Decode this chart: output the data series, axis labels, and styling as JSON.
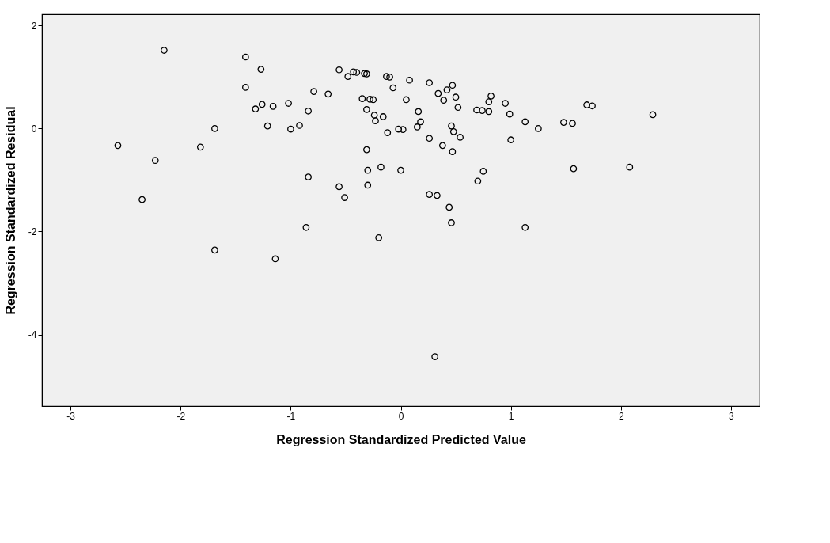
{
  "chart_data": {
    "type": "scatter",
    "xlabel": "Regression Standardized Predicted Value",
    "ylabel": "Regression Standardized Residual",
    "x": [
      -2.15,
      -1.41,
      -1.27,
      -1.41,
      -1.32,
      -1.26,
      -1.16,
      -1.21,
      -1.69,
      -2.57,
      -1.82,
      -2.23,
      -2.35,
      -1.69,
      -1.14,
      -0.56,
      -0.48,
      -0.43,
      -0.4,
      -0.33,
      -0.31,
      -0.13,
      -0.1,
      -0.07,
      0.08,
      0.26,
      -0.79,
      -0.66,
      -1.02,
      -0.84,
      -1.0,
      -0.92,
      -0.35,
      -0.28,
      -0.25,
      -0.31,
      -0.24,
      -0.23,
      -0.16,
      0.05,
      0.16,
      0.18,
      0.15,
      -0.12,
      -0.02,
      0.02,
      0.26,
      0.38,
      0.47,
      0.46,
      0.48,
      0.54,
      0.34,
      0.39,
      0.42,
      0.47,
      0.5,
      0.52,
      -0.31,
      -0.84,
      -0.3,
      -0.18,
      0.0,
      -0.56,
      -0.3,
      -0.51,
      0.26,
      0.33,
      0.44,
      0.46,
      -0.86,
      -0.2,
      0.75,
      0.7,
      0.82,
      0.8,
      0.69,
      0.74,
      0.8,
      0.95,
      0.99,
      1.13,
      1.25,
      1.48,
      1.56,
      1.69,
      1.74,
      2.29,
      1.0,
      1.57,
      2.08,
      1.13,
      0.31
    ],
    "values": [
      1.52,
      1.39,
      1.15,
      0.8,
      0.38,
      0.47,
      0.43,
      0.05,
      0.0,
      -0.33,
      -0.36,
      -0.62,
      -1.38,
      -2.36,
      -2.53,
      1.14,
      1.01,
      1.1,
      1.09,
      1.07,
      1.06,
      1.01,
      1.0,
      0.79,
      0.94,
      0.89,
      0.72,
      0.67,
      0.49,
      0.34,
      -0.01,
      0.06,
      0.58,
      0.57,
      0.56,
      0.37,
      0.26,
      0.15,
      0.23,
      0.56,
      0.33,
      0.13,
      0.03,
      -0.08,
      -0.01,
      -0.02,
      -0.19,
      -0.33,
      -0.45,
      0.05,
      -0.06,
      -0.17,
      0.68,
      0.55,
      0.75,
      0.84,
      0.61,
      0.41,
      -0.41,
      -0.94,
      -0.81,
      -0.75,
      -0.81,
      -1.13,
      -1.1,
      -1.34,
      -1.28,
      -1.3,
      -1.53,
      -1.83,
      -1.92,
      -2.12,
      -0.83,
      -1.02,
      0.63,
      0.52,
      0.36,
      0.35,
      0.33,
      0.49,
      0.28,
      0.13,
      0.0,
      0.12,
      0.1,
      0.46,
      0.44,
      0.27,
      -0.22,
      -0.78,
      -0.75,
      -1.92,
      -4.43
    ],
    "color": "#000000",
    "marker": "circle",
    "xlim": [
      -3.26,
      3.26
    ],
    "ylim": [
      -5.39,
      2.22
    ],
    "xticks": [
      -3,
      -2,
      -1,
      0,
      1,
      2,
      3
    ],
    "yticks": [
      2,
      0,
      -2,
      -4
    ],
    "grid": false
  }
}
